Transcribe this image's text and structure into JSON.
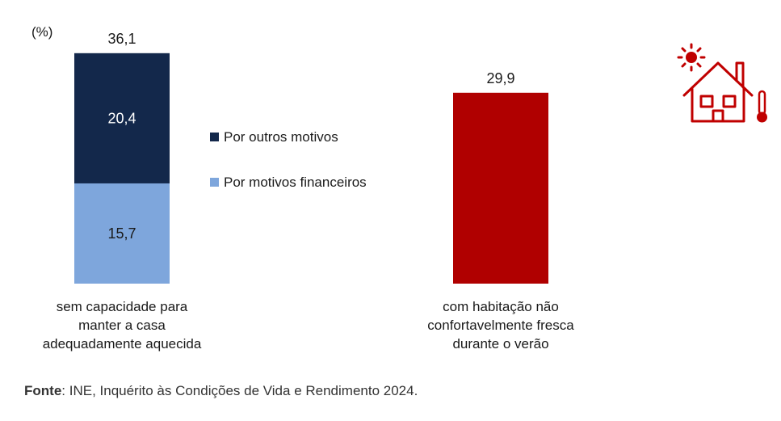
{
  "chart_data": {
    "type": "bar",
    "unit_label": "(%)",
    "categories": [
      {
        "key": "heating",
        "label_lines": [
          "sem capacidade para",
          "manter a casa",
          "adequadamente aquecida"
        ],
        "total": "36,1"
      },
      {
        "key": "cooling",
        "label_lines": [
          "com habitação não",
          "confortavelmente fresca",
          "durante o verão"
        ],
        "total": "29,9"
      }
    ],
    "series": [
      {
        "name": "Por motivos financeiros",
        "color": "#7ea6dc",
        "values": [
          15.7,
          null
        ],
        "labels": [
          "15,7",
          null
        ]
      },
      {
        "name": "Por outros motivos",
        "color": "#13284b",
        "values": [
          20.4,
          null
        ],
        "labels": [
          "20,4",
          null
        ]
      },
      {
        "name": "",
        "color": "#b00000",
        "values": [
          null,
          29.9
        ],
        "labels": [
          null,
          null
        ]
      }
    ],
    "legend": {
      "placement": "center",
      "order": [
        "Por outros motivos",
        "Por motivos financeiros"
      ]
    },
    "ylim": [
      0,
      40
    ],
    "grid": false
  },
  "icon": {
    "name": "house-heat-icon",
    "color": "#c00000"
  },
  "source": {
    "label": "Fonte",
    "text": ": INE, Inquérito às Condições de Vida e Rendimento 2024."
  }
}
